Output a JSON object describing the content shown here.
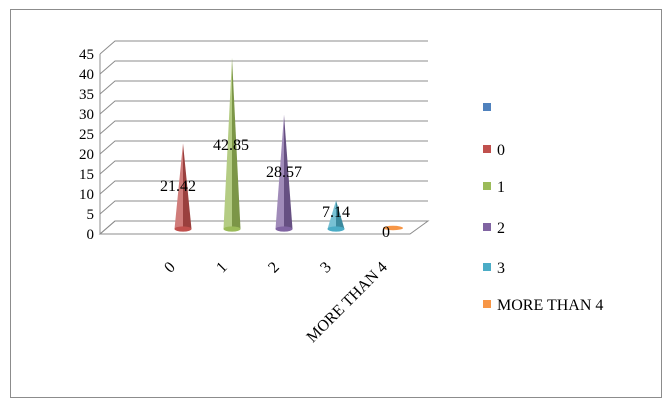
{
  "chart_data": {
    "type": "bar",
    "shape": "cone",
    "categories": [
      "0",
      "1",
      "2",
      "3",
      "MORE THAN 4"
    ],
    "values": [
      21.42,
      42.85,
      28.57,
      7.14,
      0
    ],
    "data_labels": [
      "21.42",
      "42.85",
      "28.57",
      "7.14",
      "0"
    ],
    "ylim": [
      0,
      45
    ],
    "yticks": [
      "0",
      "5",
      "10",
      "15",
      "20",
      "25",
      "30",
      "35",
      "40",
      "45"
    ],
    "grid": true,
    "title": "",
    "xlabel": "",
    "ylabel": "",
    "legend_position": "right",
    "legend": [
      {
        "label": "",
        "color": "#4F81BD"
      },
      {
        "label": "0",
        "color": "#C0504D"
      },
      {
        "label": "1",
        "color": "#9BBB59"
      },
      {
        "label": "2",
        "color": "#8064A2"
      },
      {
        "label": "3",
        "color": "#4BACC6"
      },
      {
        "label": "MORE THAN 4",
        "color": "#F79646"
      }
    ],
    "colors": [
      "#C0504D",
      "#9BBB59",
      "#8064A2",
      "#4BACC6",
      "#F79646"
    ]
  }
}
